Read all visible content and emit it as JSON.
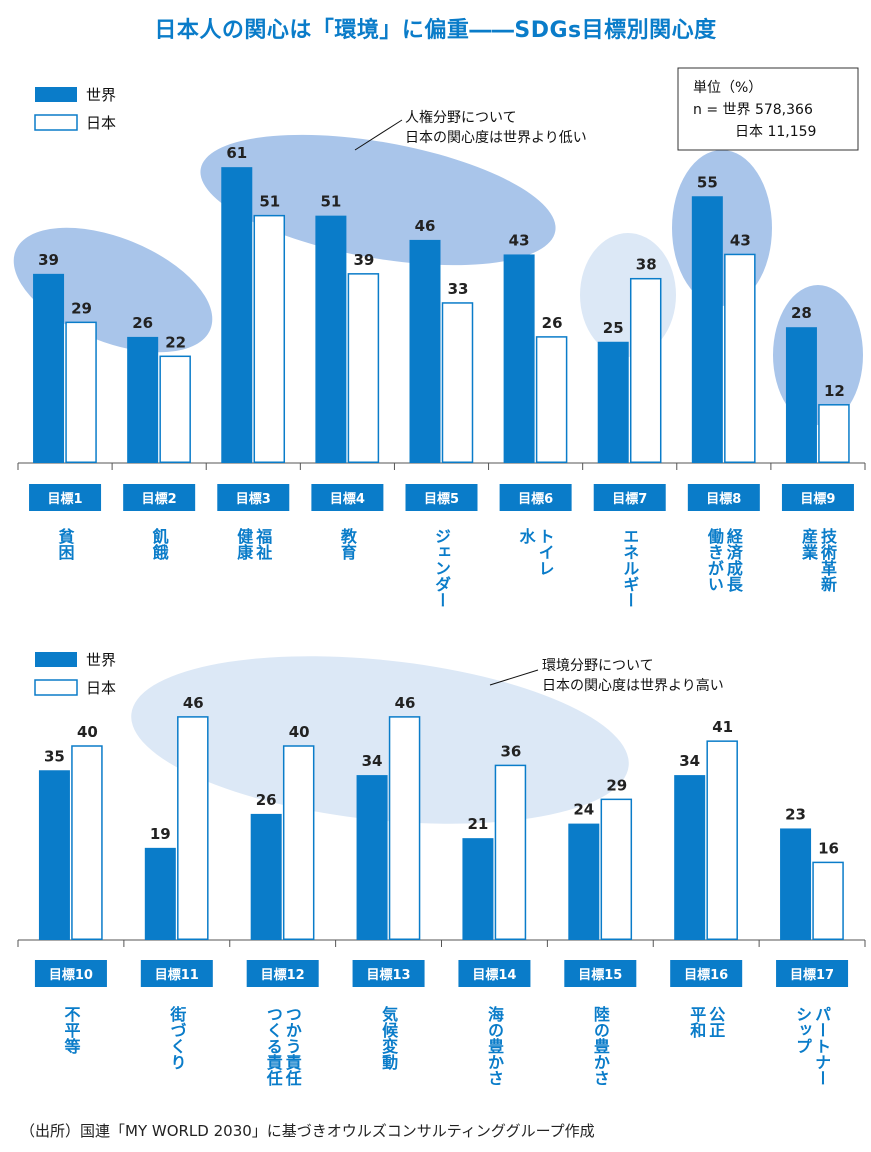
{
  "title": "日本人の関心は「環境」に偏重――SDGs目標別関心度",
  "footer": "（出所）国連「MY WORLD 2030」に基づきオウルズコンサルティンググループ作成",
  "colors": {
    "world": "#0a7cc9",
    "japan": "#ffffff",
    "highlight": "#a9c5ea",
    "highlight_light": "#dce8f6"
  },
  "legend": {
    "world": "世界",
    "japan": "日本"
  },
  "unit_box": {
    "unit": "単位（%）",
    "n_world": "n = 世界 578,366",
    "n_japan": "日本 11,159"
  },
  "annotations": {
    "top": [
      "人権分野について",
      "日本の関心度は世界より低い"
    ],
    "bottom": [
      "環境分野について",
      "日本の関心度は世界より高い"
    ]
  },
  "chart_data": [
    {
      "type": "bar",
      "series": [
        {
          "name": "世界",
          "values": [
            39,
            26,
            61,
            51,
            46,
            43,
            25,
            55,
            28
          ]
        },
        {
          "name": "日本",
          "values": [
            29,
            22,
            51,
            39,
            33,
            26,
            38,
            43,
            12
          ]
        }
      ],
      "categories": [
        "目標1",
        "目標2",
        "目標3",
        "目標4",
        "目標5",
        "目標6",
        "目標7",
        "目標8",
        "目標9"
      ],
      "topics": [
        [
          "貧困"
        ],
        [
          "飢餓"
        ],
        [
          "福祉",
          "健康"
        ],
        [
          "教育"
        ],
        [
          "ジェンダー"
        ],
        [
          "トイレ",
          "水"
        ],
        [
          "エネルギー"
        ],
        [
          "経済成長",
          "働きがい"
        ],
        [
          "技術革新",
          "産業"
        ]
      ]
    },
    {
      "type": "bar",
      "series": [
        {
          "name": "世界",
          "values": [
            35,
            19,
            26,
            34,
            21,
            24,
            34,
            23
          ]
        },
        {
          "name": "日本",
          "values": [
            40,
            46,
            40,
            46,
            36,
            29,
            41,
            16
          ]
        }
      ],
      "categories": [
        "目標10",
        "目標11",
        "目標12",
        "目標13",
        "目標14",
        "目標15",
        "目標16",
        "目標17"
      ],
      "topics": [
        [
          "不平等"
        ],
        [
          "街づくり"
        ],
        [
          "つかう責任",
          "つくる責任"
        ],
        [
          "気候変動"
        ],
        [
          "海の豊かさ"
        ],
        [
          "陸の豊かさ"
        ],
        [
          "公正",
          "平和"
        ],
        [
          "パートナー",
          "シップ"
        ]
      ]
    }
  ]
}
